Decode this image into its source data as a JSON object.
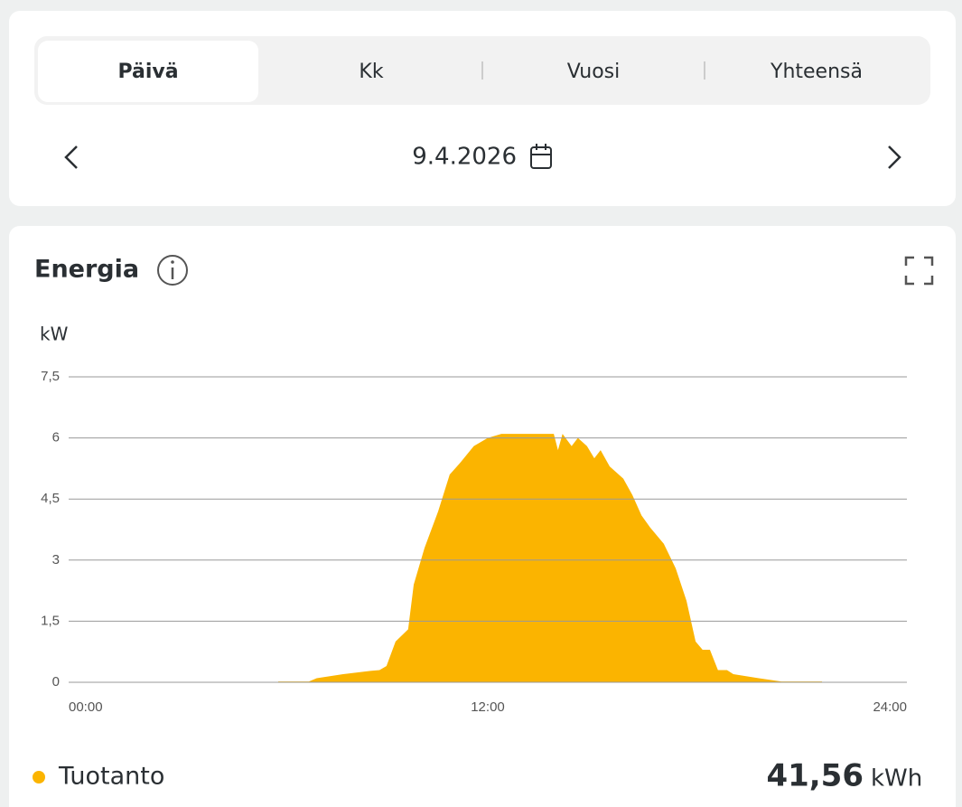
{
  "tabs": [
    "Päivä",
    "Kk",
    "Vuosi",
    "Yhteensä"
  ],
  "date": "9.4.2026",
  "total": "41,56",
  "total_unit": "kWh",
  "chart_data": {
    "type": "area",
    "title": "Energia",
    "y_label": "kW",
    "x": [
      6.0,
      6.88,
      7.1,
      7.86,
      8.64,
      8.9,
      9.1,
      9.36,
      9.72,
      9.88,
      10.19,
      10.58,
      10.91,
      11.22,
      11.6,
      12.0,
      12.39,
      13.03,
      13.89,
      14.01,
      14.14,
      14.4,
      14.58,
      14.84,
      15.05,
      15.23,
      15.49,
      15.88,
      16.14,
      16.4,
      16.65,
      17.04,
      17.38,
      17.69,
      17.95,
      18.15,
      18.36,
      18.59,
      18.85,
      19.03,
      19.76,
      20.4,
      21.57
    ],
    "series": [
      {
        "name": "Tuotanto",
        "color": "#fbb400",
        "values": [
          0.02,
          0.02,
          0.1,
          0.2,
          0.28,
          0.3,
          0.4,
          1.0,
          1.3,
          2.4,
          3.3,
          4.2,
          5.1,
          5.4,
          5.8,
          6.0,
          6.1,
          6.1,
          6.1,
          5.7,
          6.1,
          5.8,
          6.0,
          5.8,
          5.5,
          5.7,
          5.3,
          5.0,
          4.6,
          4.1,
          3.8,
          3.4,
          2.8,
          2.0,
          1.0,
          0.8,
          0.8,
          0.3,
          0.3,
          0.2,
          0.1,
          0.02,
          0.02
        ]
      }
    ],
    "xlim": [
      0,
      24
    ],
    "xticks": [
      {
        "value": 0,
        "label": "00:00"
      },
      {
        "value": 12,
        "label": "12:00"
      },
      {
        "value": 24,
        "label": "24:00"
      }
    ],
    "ylim": [
      0,
      7.5
    ],
    "yticks": [
      0,
      {
        "value": 1.5,
        "label": "1,5"
      },
      3,
      {
        "value": 4.5,
        "label": "4,5"
      },
      6,
      {
        "value": 7.5,
        "label": "7,5"
      }
    ],
    "grid": true
  }
}
